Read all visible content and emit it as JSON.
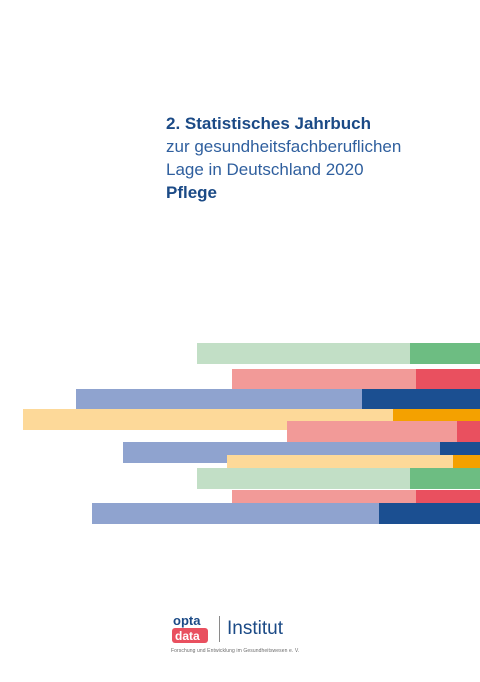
{
  "cover": {
    "title_line1": "2. Statistisches Jahrbuch",
    "title_line2": "zur gesundheitsfachberuflichen",
    "title_line3": "Lage in Deutschland 2020",
    "title_line4": "Pflege"
  },
  "colors": {
    "green_light": "#c2dfc6",
    "green_dark": "#6dbd82",
    "red_light": "#f29a98",
    "red_dark": "#e9505f",
    "blue_light": "#8fa3cf",
    "blue_dark": "#1b4f91",
    "yellow_light": "#fdd999",
    "yellow_dark": "#f4a100"
  },
  "logo": {
    "mark_top": "opta",
    "mark_bottom": "data",
    "wordmark": "Institut",
    "subtitle": "Forschung und Entwicklung im Gesundheitswesen e. V."
  }
}
